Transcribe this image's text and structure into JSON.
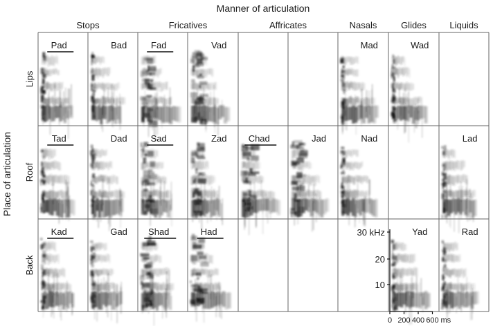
{
  "title": "Manner of articulation",
  "row_axis_label": "Place of articulation",
  "columns": [
    "Stops",
    "Fricatives",
    "Affricates",
    "Nasals",
    "Glides",
    "Liquids"
  ],
  "rows": [
    "Lips",
    "Roof",
    "Back"
  ],
  "cells": [
    {
      "label": "Pad",
      "row": 0,
      "col": 0,
      "voiceless": true
    },
    {
      "label": "Bad",
      "row": 0,
      "col": 1,
      "voiceless": false
    },
    {
      "label": "Fad",
      "row": 0,
      "col": 2,
      "voiceless": true
    },
    {
      "label": "Vad",
      "row": 0,
      "col": 3,
      "voiceless": false
    },
    {
      "label": "Mad",
      "row": 0,
      "col": 6,
      "voiceless": false
    },
    {
      "label": "Wad",
      "row": 0,
      "col": 7,
      "voiceless": false
    },
    {
      "label": "Tad",
      "row": 1,
      "col": 0,
      "voiceless": true
    },
    {
      "label": "Dad",
      "row": 1,
      "col": 1,
      "voiceless": false
    },
    {
      "label": "Sad",
      "row": 1,
      "col": 2,
      "voiceless": true
    },
    {
      "label": "Zad",
      "row": 1,
      "col": 3,
      "voiceless": false
    },
    {
      "label": "Chad",
      "row": 1,
      "col": 4,
      "voiceless": true
    },
    {
      "label": "Jad",
      "row": 1,
      "col": 5,
      "voiceless": false
    },
    {
      "label": "Nad",
      "row": 1,
      "col": 6,
      "voiceless": false
    },
    {
      "label": "Lad",
      "row": 1,
      "col": 8,
      "voiceless": false
    },
    {
      "label": "Kad",
      "row": 2,
      "col": 0,
      "voiceless": true
    },
    {
      "label": "Gad",
      "row": 2,
      "col": 1,
      "voiceless": false
    },
    {
      "label": "Shad",
      "row": 2,
      "col": 2,
      "voiceless": true
    },
    {
      "label": "Had",
      "row": 2,
      "col": 3,
      "voiceless": true
    },
    {
      "label": "Yad",
      "row": 2,
      "col": 7,
      "voiceless": false
    },
    {
      "label": "Rad",
      "row": 2,
      "col": 8,
      "voiceless": false
    }
  ],
  "freq_axis": {
    "ticks": [
      "30 kHz",
      "20",
      "10"
    ]
  },
  "time_axis": {
    "ticks": [
      "0",
      "200",
      "400",
      "600"
    ],
    "unit": "ms"
  }
}
